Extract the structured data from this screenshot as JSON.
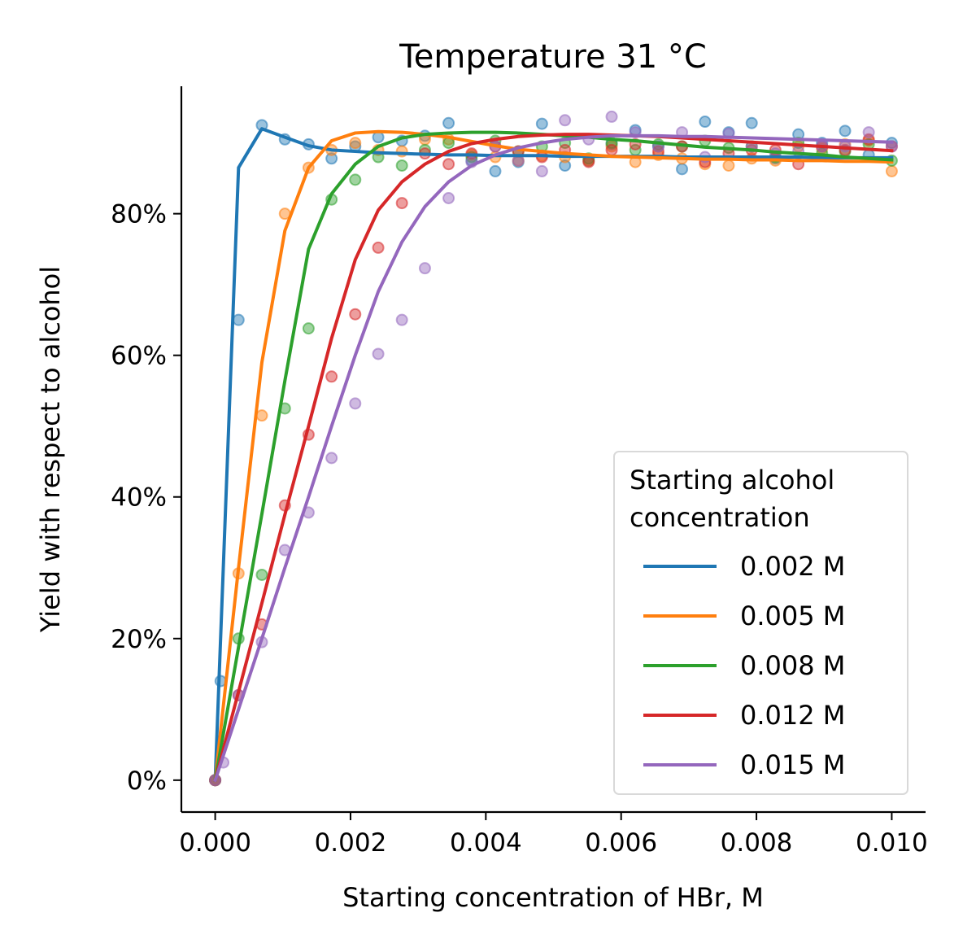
{
  "chart_data": {
    "type": "line",
    "title": "Temperature 31 °C",
    "xlabel": "Starting concentration of HBr, M",
    "ylabel": "Yield with respect to alcohol",
    "xlim": [
      -0.0005,
      0.0105
    ],
    "ylim": [
      -4.5,
      98
    ],
    "xticks": [
      0.0,
      0.002,
      0.004,
      0.006,
      0.008,
      0.01
    ],
    "xtick_labels": [
      "0.000",
      "0.002",
      "0.004",
      "0.006",
      "0.008",
      "0.010"
    ],
    "yticks": [
      0,
      20,
      40,
      60,
      80
    ],
    "ytick_labels": [
      "0%",
      "20%",
      "40%",
      "60%",
      "80%"
    ],
    "grid": false,
    "legend": {
      "title": "Starting alcohol\nconcentration",
      "placement": "lower-right"
    },
    "x": [
      0.0,
      0.000345,
      0.00069,
      0.00103,
      0.00138,
      0.00172,
      0.00207,
      0.00241,
      0.00276,
      0.0031,
      0.00345,
      0.00379,
      0.00414,
      0.00448,
      0.00483,
      0.00517,
      0.00552,
      0.00586,
      0.00621,
      0.00655,
      0.0069,
      0.00724,
      0.00759,
      0.00793,
      0.00828,
      0.00862,
      0.00897,
      0.00931,
      0.00966,
      0.01
    ],
    "series": [
      {
        "name": "0.002 M",
        "color": "#1f77b4",
        "model": [
          0,
          86.5,
          92.0,
          90.8,
          89.6,
          89.0,
          88.8,
          88.6,
          88.5,
          88.4,
          88.3,
          88.3,
          88.2,
          88.2,
          88.2,
          88.1,
          88.1,
          88.1,
          88.1,
          88.1,
          88.0,
          88.0,
          88.0,
          88.0,
          88.0,
          88.0,
          87.9,
          87.9,
          87.9,
          87.9
        ],
        "observed": [
          0,
          65.0,
          92.5,
          90.5,
          89.8,
          87.8,
          89.5,
          90.8,
          90.3,
          91.0,
          92.8,
          87.5,
          86.0,
          87.3,
          92.7,
          86.8,
          87.5,
          89.8,
          91.8,
          89.5,
          86.3,
          93.0,
          91.5,
          92.8,
          87.8,
          91.2,
          90.0,
          91.7,
          88.3,
          90.0
        ],
        "observed_extra": [
          {
            "x": 8e-05,
            "y": 14.0
          }
        ]
      },
      {
        "name": "0.005 M",
        "color": "#ff7f0e",
        "model": [
          0,
          30.0,
          59.0,
          77.6,
          86.5,
          90.3,
          91.4,
          91.6,
          91.5,
          91.2,
          90.8,
          90.2,
          89.6,
          89.1,
          88.8,
          88.5,
          88.3,
          88.1,
          88.0,
          87.9,
          87.8,
          87.7,
          87.7,
          87.6,
          87.6,
          87.5,
          87.5,
          87.4,
          87.4,
          87.3
        ],
        "observed": [
          0,
          29.2,
          51.5,
          80.0,
          86.5,
          89.0,
          90.0,
          89.0,
          88.8,
          90.5,
          90.5,
          88.3,
          88.0,
          87.5,
          88.2,
          88.0,
          87.5,
          89.5,
          87.3,
          88.3,
          87.8,
          87.0,
          86.8,
          87.8,
          87.5,
          89.5,
          89.2,
          89.8,
          90.3,
          86.0
        ]
      },
      {
        "name": "0.008 M",
        "color": "#2ca02c",
        "model": [
          0,
          18.8,
          37.6,
          56.4,
          75.0,
          82.8,
          87.0,
          89.5,
          90.7,
          91.2,
          91.4,
          91.5,
          91.5,
          91.4,
          91.2,
          91.0,
          90.8,
          90.5,
          90.3,
          90.0,
          89.7,
          89.4,
          89.2,
          89.0,
          88.7,
          88.5,
          88.3,
          88.0,
          87.8,
          87.6
        ],
        "observed": [
          0,
          20.0,
          29.0,
          52.5,
          63.8,
          82.0,
          84.8,
          88.0,
          86.8,
          89.0,
          90.0,
          88.0,
          90.3,
          88.8,
          89.5,
          90.0,
          87.8,
          90.0,
          89.0,
          89.8,
          89.5,
          90.3,
          89.3,
          89.5,
          88.0,
          90.0,
          88.5,
          88.8,
          89.8,
          87.5
        ]
      },
      {
        "name": "0.012 M",
        "color": "#d62728",
        "model": [
          0,
          12.5,
          25.0,
          37.5,
          50.0,
          62.4,
          73.5,
          80.5,
          84.5,
          87.0,
          88.8,
          89.9,
          90.5,
          90.9,
          91.1,
          91.2,
          91.2,
          91.1,
          91.0,
          90.9,
          90.7,
          90.5,
          90.3,
          90.1,
          89.9,
          89.7,
          89.5,
          89.3,
          89.1,
          88.9
        ],
        "observed": [
          0,
          12.0,
          22.0,
          38.8,
          48.8,
          57.0,
          65.8,
          75.2,
          81.5,
          88.5,
          87.0,
          88.5,
          89.5,
          88.8,
          88.0,
          89.0,
          87.3,
          89.0,
          89.8,
          88.8,
          89.5,
          87.3,
          88.5,
          89.0,
          89.0,
          87.0,
          89.5,
          89.0,
          90.5,
          89.5
        ]
      },
      {
        "name": "0.015 M",
        "color": "#9467bd",
        "model": [
          0,
          10.0,
          20.0,
          30.0,
          40.0,
          50.0,
          60.0,
          69.0,
          76.0,
          81.0,
          84.5,
          86.8,
          88.3,
          89.3,
          90.0,
          90.5,
          90.8,
          91.0,
          91.0,
          91.0,
          90.9,
          90.9,
          90.8,
          90.7,
          90.6,
          90.5,
          90.4,
          90.3,
          90.2,
          90.1
        ],
        "observed": [
          0,
          12.0,
          19.5,
          32.5,
          37.8,
          45.5,
          53.2,
          60.2,
          65.0,
          72.3,
          82.2,
          87.3,
          89.5,
          87.5,
          86.0,
          93.2,
          90.5,
          93.7,
          91.5,
          89.5,
          91.5,
          88.0,
          91.3,
          89.5,
          88.5,
          88.8,
          89.5,
          89.5,
          91.5,
          89.5
        ],
        "observed_extra": [
          {
            "x": 0.00012,
            "y": 2.5
          }
        ]
      }
    ]
  }
}
